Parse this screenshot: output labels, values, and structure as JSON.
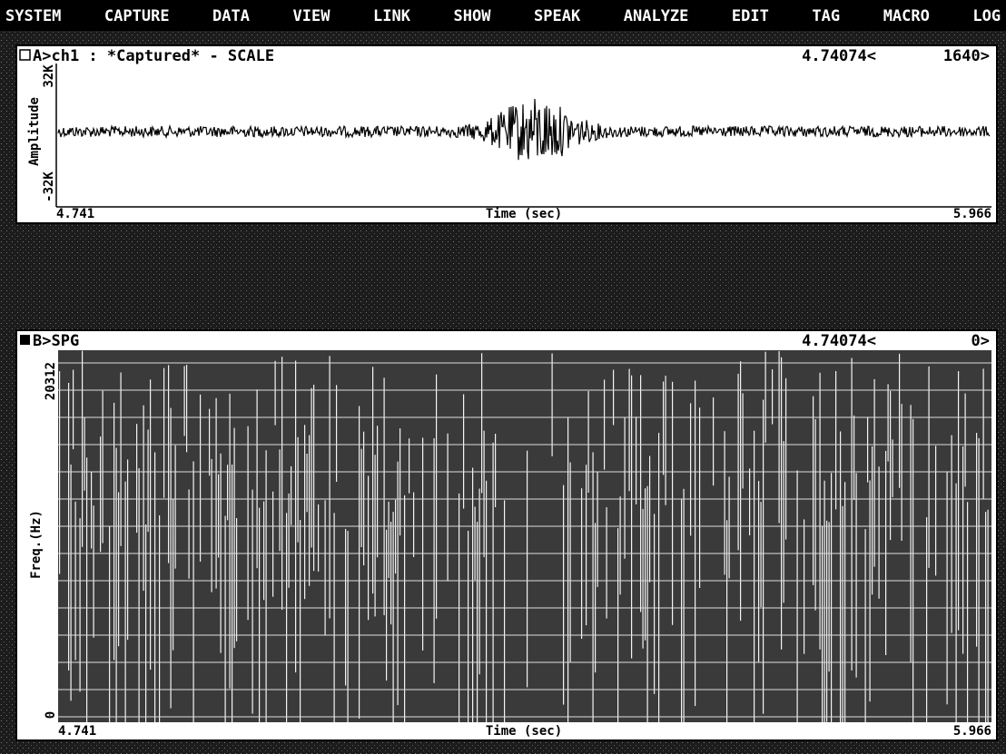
{
  "menu": [
    "SYSTEM",
    "CAPTURE",
    "DATA",
    "VIEW",
    "LINK",
    "SHOW",
    "SPEAK",
    "ANALYZE",
    "EDIT",
    "TAG",
    "MACRO",
    "LOG"
  ],
  "panels": [
    {
      "header": "A>ch1 : *Captured* - SCALE",
      "cursor_time": "4.74074<",
      "cursor_value": "1640>",
      "y_label": "Amplitude",
      "y_top": "32K",
      "y_bottom": "-32K",
      "x_start": "4.741",
      "x_label": "Time (sec)",
      "x_end": "5.966"
    },
    {
      "header": "B>SPG",
      "cursor_time": "4.74074<",
      "cursor_value": "0>",
      "y_label": "Freq.(Hz)",
      "y_top": "20312",
      "y_bottom": "0",
      "x_start": "4.741",
      "x_label": "Time (sec)",
      "x_end": "5.966"
    }
  ]
}
